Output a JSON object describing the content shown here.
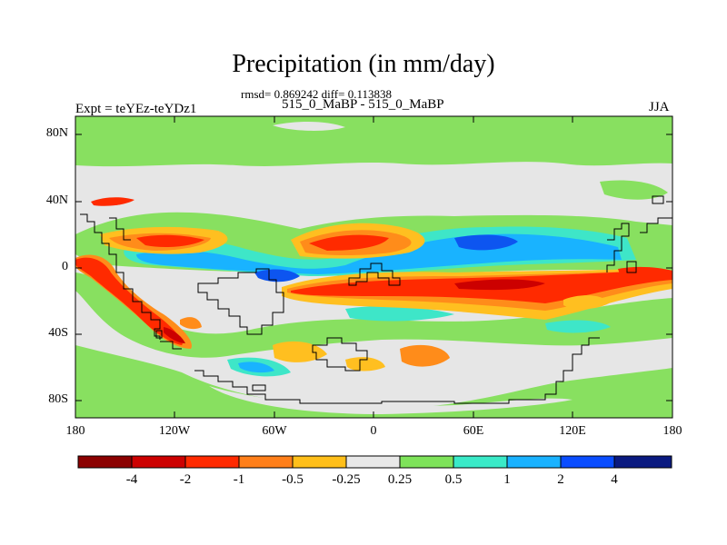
{
  "title": "Precipitation (in mm/day)",
  "stats": "rmsd= 0.869242 diff= 0.113838",
  "case_line": "515_0_MaBP - 515_0_MaBP",
  "expt_label": "Expt = teYEz-teYDz1",
  "season": "JJA",
  "lat_labels": [
    "80N",
    "40N",
    "0",
    "40S",
    "80S"
  ],
  "lon_labels": [
    "180",
    "120W",
    "60W",
    "0",
    "60E",
    "120E",
    "180"
  ],
  "colorbar": {
    "labels": [
      "-4",
      "-2",
      "-1",
      "-0.5",
      "-0.25",
      "0.25",
      "0.5",
      "1",
      "2",
      "4"
    ],
    "colors": [
      "#8b0000",
      "#cc0000",
      "#ff2a00",
      "#ff7f1a",
      "#ffbf1a",
      "#e8e8e8",
      "#7ee35a",
      "#3aeac8",
      "#1ab2ff",
      "#0a4dff",
      "#0a1a80"
    ]
  },
  "field_colors": {
    "neutral": "#e6e6e6",
    "green": "#88e060",
    "cyan": "#3ee6c8",
    "lightblue": "#19b3ff",
    "blue": "#0d55f0",
    "orange": "#ff8c1a",
    "yellow": "#ffbf20",
    "red": "#ff2a00",
    "darkred": "#cc0000"
  }
}
